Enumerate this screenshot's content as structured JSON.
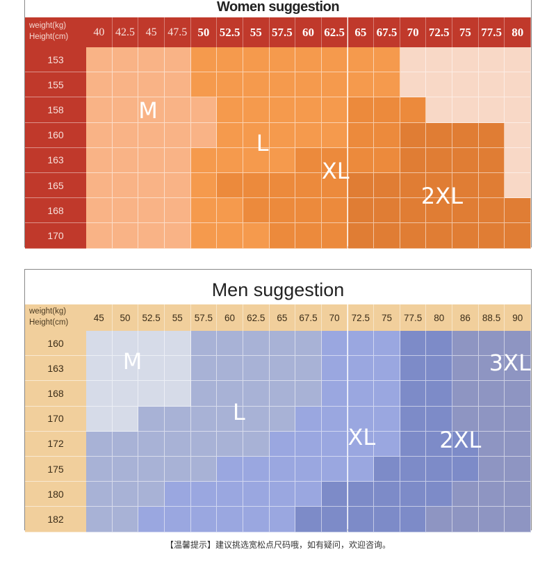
{
  "chart_data": [
    {
      "type": "table",
      "title": "Women suggestion",
      "corner_labels": [
        "weight(kg)",
        "Height(cm)"
      ],
      "x_label": "weight(kg)",
      "y_label": "Height(cm)",
      "weights": [
        "40",
        "42.5",
        "45",
        "47.5",
        "50",
        "52.5",
        "55",
        "57.5",
        "60",
        "62.5",
        "65",
        "67.5",
        "70",
        "72.5",
        "75",
        "77.5",
        "80"
      ],
      "heights": [
        "153",
        "155",
        "158",
        "160",
        "163",
        "165",
        "168",
        "170"
      ],
      "header_color": "#c0392b",
      "size_colors": {
        "M": "#f9b386",
        "L": "#f59a4d",
        "XL": "#ec8a3c",
        "2XL": "#e07d34",
        "blank": "#f8d8c6"
      },
      "sizes": [
        [
          "M",
          "M",
          "M",
          "M",
          "L",
          "L",
          "L",
          "L",
          "L",
          "L",
          "L",
          "L",
          "blank",
          "blank",
          "blank",
          "blank",
          "blank"
        ],
        [
          "M",
          "M",
          "M",
          "M",
          "L",
          "L",
          "L",
          "L",
          "L",
          "L",
          "L",
          "L",
          "blank",
          "blank",
          "blank",
          "blank",
          "blank"
        ],
        [
          "M",
          "M",
          "M",
          "M",
          "M",
          "L",
          "L",
          "L",
          "L",
          "L",
          "XL",
          "XL",
          "XL",
          "blank",
          "blank",
          "blank",
          "blank"
        ],
        [
          "M",
          "M",
          "M",
          "M",
          "M",
          "L",
          "L",
          "L",
          "L",
          "L",
          "XL",
          "XL",
          "2XL",
          "2XL",
          "2XL",
          "2XL",
          "blank"
        ],
        [
          "M",
          "M",
          "M",
          "M",
          "L",
          "L",
          "L",
          "L",
          "XL",
          "XL",
          "XL",
          "XL",
          "2XL",
          "2XL",
          "2XL",
          "2XL",
          "blank"
        ],
        [
          "M",
          "M",
          "M",
          "M",
          "L",
          "XL",
          "XL",
          "XL",
          "XL",
          "XL",
          "2XL",
          "2XL",
          "2XL",
          "2XL",
          "2XL",
          "2XL",
          "blank"
        ],
        [
          "M",
          "M",
          "M",
          "M",
          "L",
          "L",
          "XL",
          "XL",
          "XL",
          "XL",
          "2XL",
          "2XL",
          "2XL",
          "2XL",
          "2XL",
          "2XL",
          "2XL"
        ],
        [
          "M",
          "M",
          "M",
          "M",
          "L",
          "L",
          "L",
          "XL",
          "XL",
          "XL",
          "2XL",
          "2XL",
          "2XL",
          "2XL",
          "2XL",
          "2XL",
          "2XL"
        ]
      ],
      "size_labels": [
        {
          "text": "M",
          "col": 2,
          "row": 2
        },
        {
          "text": "L",
          "col": 6.5,
          "row": 3.3
        },
        {
          "text": "XL",
          "col": 9,
          "row": 4.4
        },
        {
          "text": "2XL",
          "col": 12.8,
          "row": 5.4
        }
      ]
    },
    {
      "type": "table",
      "title": "Men suggestion",
      "corner_labels": [
        "weight(kg)",
        "Height(cm)"
      ],
      "x_label": "weight(kg)",
      "y_label": "Height(cm)",
      "weights": [
        "45",
        "50",
        "52.5",
        "55",
        "57.5",
        "60",
        "62.5",
        "65",
        "67.5",
        "70",
        "72.5",
        "75",
        "77.5",
        "80",
        "86",
        "88.5",
        "90"
      ],
      "heights": [
        "160",
        "163",
        "168",
        "170",
        "172",
        "175",
        "180",
        "182"
      ],
      "header_color": "#f1cf9c",
      "size_colors": {
        "M": "#d6dbe8",
        "L": "#a8b2d6",
        "XL": "#9aa7e0",
        "2XL": "#7d8bc8",
        "3XL": "#8e95c2"
      },
      "sizes": [
        [
          "M",
          "M",
          "M",
          "M",
          "L",
          "L",
          "L",
          "L",
          "L",
          "XL",
          "XL",
          "XL",
          "2XL",
          "2XL",
          "3XL",
          "3XL",
          "3XL"
        ],
        [
          "M",
          "M",
          "M",
          "M",
          "L",
          "L",
          "L",
          "L",
          "L",
          "XL",
          "XL",
          "XL",
          "2XL",
          "2XL",
          "3XL",
          "3XL",
          "3XL"
        ],
        [
          "M",
          "M",
          "M",
          "M",
          "L",
          "L",
          "L",
          "L",
          "L",
          "XL",
          "XL",
          "XL",
          "2XL",
          "2XL",
          "3XL",
          "3XL",
          "3XL"
        ],
        [
          "M",
          "M",
          "L",
          "L",
          "L",
          "L",
          "L",
          "L",
          "XL",
          "XL",
          "XL",
          "XL",
          "2XL",
          "2XL",
          "3XL",
          "3XL",
          "3XL"
        ],
        [
          "L",
          "L",
          "L",
          "L",
          "L",
          "L",
          "L",
          "XL",
          "XL",
          "XL",
          "XL",
          "XL",
          "2XL",
          "2XL",
          "2XL",
          "3XL",
          "3XL"
        ],
        [
          "L",
          "L",
          "L",
          "L",
          "L",
          "XL",
          "XL",
          "XL",
          "XL",
          "XL",
          "XL",
          "2XL",
          "2XL",
          "2XL",
          "2XL",
          "3XL",
          "3XL"
        ],
        [
          "L",
          "L",
          "L",
          "XL",
          "XL",
          "XL",
          "XL",
          "XL",
          "XL",
          "2XL",
          "2XL",
          "2XL",
          "2XL",
          "2XL",
          "3XL",
          "3XL",
          "3XL"
        ],
        [
          "L",
          "L",
          "XL",
          "XL",
          "XL",
          "XL",
          "XL",
          "XL",
          "2XL",
          "2XL",
          "2XL",
          "2XL",
          "2XL",
          "3XL",
          "3XL",
          "3XL",
          "3XL"
        ]
      ],
      "size_labels": [
        {
          "text": "M",
          "col": 1.4,
          "row": 0.7
        },
        {
          "text": "L",
          "col": 5.6,
          "row": 2.7
        },
        {
          "text": "XL",
          "col": 10.0,
          "row": 3.7
        },
        {
          "text": "2XL",
          "col": 13.5,
          "row": 3.8
        },
        {
          "text": "3XL",
          "col": 15.4,
          "row": 0.75
        }
      ]
    }
  ],
  "footnote": "【温馨提示】建议挑选宽松点尺码哦，如有疑问，欢迎咨询。"
}
